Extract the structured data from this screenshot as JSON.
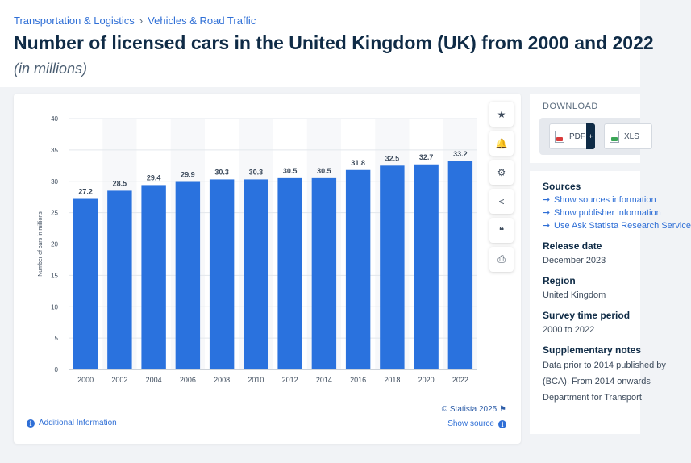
{
  "breadcrumb": {
    "items": [
      "Transportation & Logistics",
      "Vehicles & Road Traffic"
    ],
    "separator": "›"
  },
  "page": {
    "title": "Number of licensed cars in the United Kingdom (UK) from 2000 and 2022",
    "subtitle": "(in millions)"
  },
  "chart_data": {
    "type": "bar",
    "categories": [
      "2000",
      "2002",
      "2004",
      "2006",
      "2008",
      "2010",
      "2012",
      "2014",
      "2016",
      "2018",
      "2020",
      "2022"
    ],
    "values": [
      27.2,
      28.5,
      29.4,
      29.9,
      30.3,
      30.3,
      30.5,
      30.5,
      31.8,
      32.5,
      32.7,
      33.2
    ],
    "value_labels": [
      "27.2",
      "28.5",
      "29.4",
      "29.9",
      "30.3",
      "30.3",
      "30.5",
      "30.5",
      "31.8",
      "32.5",
      "32.7",
      "33.2"
    ],
    "title": "Number of licensed cars in the United Kingdom (UK) from 2000 and 2022",
    "xlabel": "",
    "ylabel": "Number of cars in millions",
    "ylim": [
      0,
      40
    ],
    "yticks": [
      0,
      5,
      10,
      15,
      20,
      25,
      30,
      35,
      40
    ],
    "ytick_labels": [
      "0",
      "5",
      "10",
      "15",
      "20",
      "25",
      "30",
      "35",
      "40"
    ],
    "bar_color": "#2a72de",
    "grid": true
  },
  "chart_footer": {
    "credit": "© Statista 2025",
    "show_source": "Show source",
    "additional_info": "Additional Information"
  },
  "tools": {
    "star": "★",
    "bell": "🔔",
    "gear": "⚙",
    "share": "<",
    "quote": "❝",
    "print": "⎙"
  },
  "download": {
    "title": "DOWNLOAD",
    "pdf_label": "PDF",
    "xls_label": "XLS",
    "plus": "+"
  },
  "sidebar": {
    "sources_heading": "Sources",
    "sources_links": [
      "Show sources information",
      "Show publisher information",
      "Use Ask Statista Research Service"
    ],
    "release_heading": "Release date",
    "release_value": "December 2023",
    "region_heading": "Region",
    "region_value": "United Kingdom",
    "survey_heading": "Survey time period",
    "survey_value": "2000 to 2022",
    "supp_heading": "Supplementary notes",
    "supp_lines": [
      "Data prior to 2014 published by",
      "(BCA). From 2014 onwards",
      "Department for Transport"
    ]
  },
  "colors": {
    "accent": "#2f6fd6",
    "title": "#0f2b46",
    "bar": "#2a72de"
  }
}
